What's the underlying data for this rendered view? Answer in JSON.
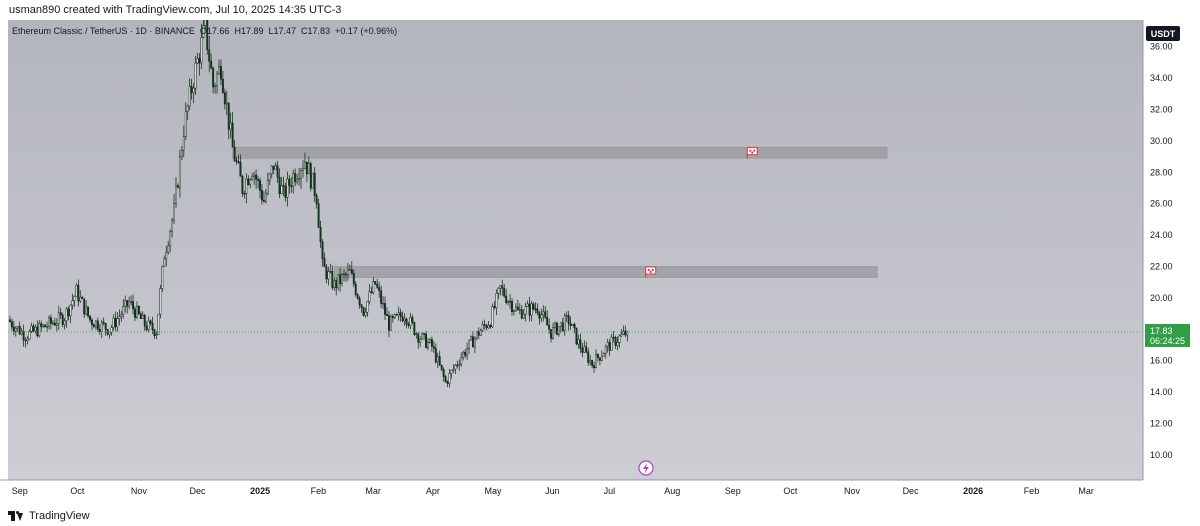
{
  "header": {
    "byline": "usman890 created with TradingView.com, Jul 10, 2025 14:35 UTC-3"
  },
  "legend": {
    "symbol": "Ethereum Classic / TetherUS · 1D · BINANCE",
    "open": "O17.66",
    "high": "H17.89",
    "low": "L17.47",
    "close": "C17.83",
    "change": "+0.17 (+0.96%)"
  },
  "footer": {
    "brand": "TradingView"
  },
  "colors": {
    "background_top": "#b3b5bd",
    "background_bottom": "#cdced4",
    "candle_up": "#ffffff",
    "candle_down": "#0f3d1e",
    "candle_border": "#0a1f10",
    "zone_fill": "#9c9ea3",
    "flag": "#e03a3a",
    "price_badge": "#2f9e44",
    "currency_badge": "#131722",
    "current_price_line": "#3fa85b"
  },
  "chart_data": {
    "type": "candlestick",
    "symbol": "Ethereum Classic / TetherUS",
    "interval": "1D",
    "exchange": "BINANCE",
    "currency": "USDT",
    "y_axis": {
      "ticks": [
        10,
        12,
        14,
        16,
        18,
        20,
        22,
        24,
        26,
        28,
        30,
        32,
        34,
        36
      ],
      "tick_labels": [
        "10.00",
        "12.00",
        "14.00",
        "16.00",
        "18.00",
        "20.00",
        "22.00",
        "24.00",
        "26.00",
        "28.00",
        "30.00",
        "32.00",
        "34.00",
        "36.00"
      ],
      "range": [
        8.4,
        37.7
      ]
    },
    "x_axis": {
      "range": [
        "2024-08-27",
        "2026-03-31"
      ],
      "ticks": [
        {
          "date": "2024-09-01",
          "label": "Sep",
          "bold": false
        },
        {
          "date": "2024-10-01",
          "label": "Oct",
          "bold": false
        },
        {
          "date": "2024-11-01",
          "label": "Nov",
          "bold": false
        },
        {
          "date": "2024-12-01",
          "label": "Dec",
          "bold": false
        },
        {
          "date": "2025-01-01",
          "label": "2025",
          "bold": true
        },
        {
          "date": "2025-02-01",
          "label": "Feb",
          "bold": false
        },
        {
          "date": "2025-03-01",
          "label": "Mar",
          "bold": false
        },
        {
          "date": "2025-04-01",
          "label": "Apr",
          "bold": false
        },
        {
          "date": "2025-05-01",
          "label": "May",
          "bold": false
        },
        {
          "date": "2025-06-01",
          "label": "Jun",
          "bold": false
        },
        {
          "date": "2025-07-01",
          "label": "Jul",
          "bold": false
        },
        {
          "date": "2025-08-01",
          "label": "Aug",
          "bold": false
        },
        {
          "date": "2025-09-01",
          "label": "Sep",
          "bold": false
        },
        {
          "date": "2025-10-01",
          "label": "Oct",
          "bold": false
        },
        {
          "date": "2025-11-01",
          "label": "Nov",
          "bold": false
        },
        {
          "date": "2025-12-01",
          "label": "Dec",
          "bold": false
        },
        {
          "date": "2026-01-01",
          "label": "2026",
          "bold": true
        },
        {
          "date": "2026-02-01",
          "label": "Feb",
          "bold": false
        },
        {
          "date": "2026-03-01",
          "label": "Mar",
          "bold": false
        }
      ]
    },
    "price_path": [
      [
        "2024-08-27",
        18.6
      ],
      [
        "2024-09-05",
        17.6
      ],
      [
        "2024-09-15",
        18.2
      ],
      [
        "2024-09-25",
        18.8
      ],
      [
        "2024-10-01",
        20.4
      ],
      [
        "2024-10-08",
        18.6
      ],
      [
        "2024-10-18",
        18.0
      ],
      [
        "2024-10-28",
        19.7
      ],
      [
        "2024-11-05",
        18.3
      ],
      [
        "2024-11-11",
        17.9
      ],
      [
        "2024-11-15",
        22.8
      ],
      [
        "2024-11-20",
        25.5
      ],
      [
        "2024-11-25",
        30.8
      ],
      [
        "2024-11-30",
        34.0
      ],
      [
        "2024-12-06",
        37.2
      ],
      [
        "2024-12-10",
        33.5
      ],
      [
        "2024-12-14",
        34.8
      ],
      [
        "2024-12-20",
        29.5
      ],
      [
        "2024-12-25",
        27.0
      ],
      [
        "2024-12-30",
        28.3
      ],
      [
        "2025-01-05",
        26.2
      ],
      [
        "2025-01-10",
        28.5
      ],
      [
        "2025-01-15",
        26.5
      ],
      [
        "2025-01-20",
        27.8
      ],
      [
        "2025-01-26",
        28.8
      ],
      [
        "2025-02-01",
        26.5
      ],
      [
        "2025-02-04",
        22.0
      ],
      [
        "2025-02-10",
        20.8
      ],
      [
        "2025-02-18",
        21.6
      ],
      [
        "2025-02-25",
        19.2
      ],
      [
        "2025-03-03",
        20.9
      ],
      [
        "2025-03-10",
        18.3
      ],
      [
        "2025-03-18",
        19.0
      ],
      [
        "2025-03-25",
        17.6
      ],
      [
        "2025-04-01",
        16.9
      ],
      [
        "2025-04-08",
        14.6
      ],
      [
        "2025-04-15",
        16.1
      ],
      [
        "2025-04-25",
        17.8
      ],
      [
        "2025-05-01",
        18.6
      ],
      [
        "2025-05-06",
        20.6
      ],
      [
        "2025-05-15",
        19.1
      ],
      [
        "2025-05-25",
        19.4
      ],
      [
        "2025-06-01",
        17.8
      ],
      [
        "2025-06-10",
        18.6
      ],
      [
        "2025-06-15",
        17.1
      ],
      [
        "2025-06-22",
        15.8
      ],
      [
        "2025-06-30",
        16.9
      ],
      [
        "2025-07-10",
        17.83
      ]
    ],
    "current_price": 17.83,
    "countdown": "06:24:25",
    "zones": [
      {
        "from": "2024-12-20",
        "to": "2025-11-20",
        "low": 28.9,
        "high": 29.6,
        "flag_date": "2025-09-12"
      },
      {
        "from": "2025-02-10",
        "to": "2025-11-15",
        "low": 21.3,
        "high": 22.0,
        "flag_date": "2025-07-22"
      }
    ]
  }
}
